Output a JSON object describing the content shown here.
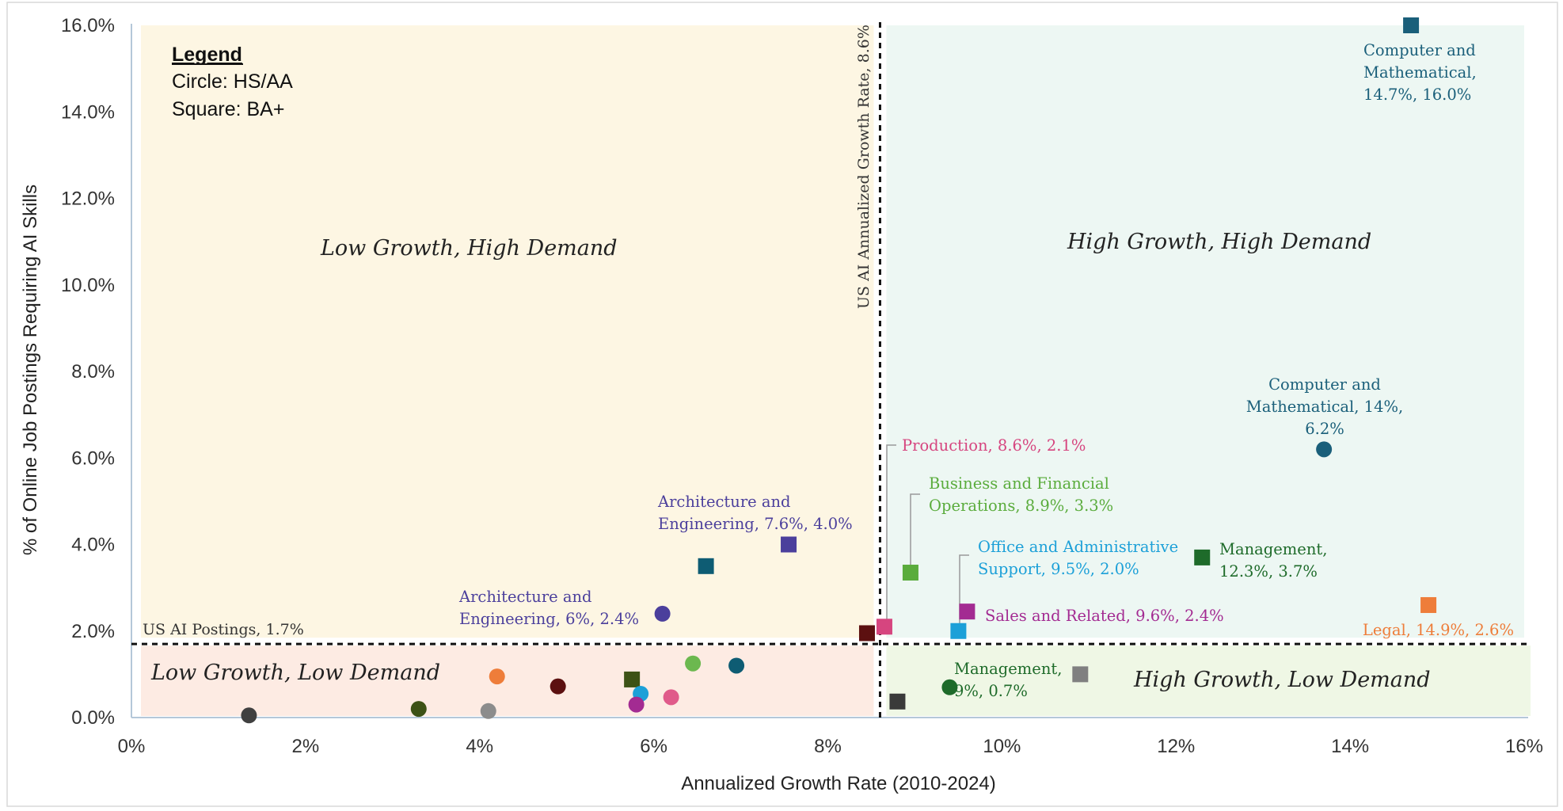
{
  "chart_data": {
    "type": "scatter",
    "title": "",
    "xlabel": "Annualized Growth Rate (2010-2024)",
    "ylabel": "% of Online Job Postings Requiring AI Skills",
    "xlim": [
      0,
      16
    ],
    "ylim": [
      0,
      16
    ],
    "x_ticks": [
      "0%",
      "2%",
      "4%",
      "6%",
      "8%",
      "10%",
      "12%",
      "14%",
      "16%"
    ],
    "y_ticks": [
      "0.0%",
      "2.0%",
      "4.0%",
      "6.0%",
      "8.0%",
      "10.0%",
      "12.0%",
      "14.0%",
      "16.0%"
    ],
    "grid": false,
    "legend": {
      "title": "Legend",
      "items": [
        "Circle: HS/AA",
        "Square: BA+"
      ]
    },
    "reference_lines": {
      "vertical": {
        "x": 8.6,
        "label": "US AI Annualized Growth Rate, 8.6%"
      },
      "horizontal": {
        "y": 1.7,
        "label": "US AI Postings, 1.7%"
      }
    },
    "quadrants": {
      "top_left": {
        "label": "Low Growth, High Demand",
        "color": "#fdf6e3"
      },
      "top_right": {
        "label": "High Growth, High Demand",
        "color": "#edf7f3"
      },
      "bottom_left": {
        "label": "Low Growth, Low Demand",
        "color": "#fdebe3"
      },
      "bottom_right": {
        "label": "High Growth, Low Demand",
        "color": "#eff7e5"
      }
    },
    "points": [
      {
        "x": 14.7,
        "y": 16.0,
        "shape": "square",
        "color": "#1a5f7a",
        "label": "Computer and\nMathematical,\n14.7%, 16.0%",
        "anchor": "start"
      },
      {
        "x": 13.7,
        "y": 6.2,
        "shape": "circle",
        "color": "#1a5f7a",
        "label": "Computer and\nMathematical, 14%,\n6.2%",
        "anchor": "middle"
      },
      {
        "x": 7.55,
        "y": 4.0,
        "shape": "square",
        "color": "#4b3f9c",
        "label": "Architecture and\nEngineering, 7.6%, 4.0%",
        "anchor": "start"
      },
      {
        "x": 6.6,
        "y": 3.5,
        "shape": "square",
        "color": "#0e5c73",
        "label": "",
        "anchor": "start"
      },
      {
        "x": 6.1,
        "y": 2.4,
        "shape": "circle",
        "color": "#4b3f9c",
        "label": "Architecture and\nEngineering, 6%, 2.4%",
        "anchor": "start"
      },
      {
        "x": 8.45,
        "y": 1.95,
        "shape": "square",
        "color": "#5c1010",
        "label": "",
        "anchor": "start"
      },
      {
        "x": 8.65,
        "y": 2.1,
        "shape": "square",
        "color": "#d6457f",
        "label": "Production, 8.6%, 2.1%",
        "anchor": "start"
      },
      {
        "x": 8.95,
        "y": 3.35,
        "shape": "square",
        "color": "#5aac3c",
        "label": "Business and Financial\nOperations, 8.9%, 3.3%",
        "anchor": "start"
      },
      {
        "x": 9.5,
        "y": 2.0,
        "shape": "square",
        "color": "#1ca0d8",
        "label": "Office and Administrative\nSupport, 9.5%, 2.0%",
        "anchor": "start"
      },
      {
        "x": 9.6,
        "y": 2.45,
        "shape": "square",
        "color": "#a32b92",
        "label": "Sales and Related, 9.6%, 2.4%",
        "anchor": "start"
      },
      {
        "x": 12.3,
        "y": 3.7,
        "shape": "square",
        "color": "#1e6b2a",
        "label": "Management,\n12.3%, 3.7%",
        "anchor": "start"
      },
      {
        "x": 14.9,
        "y": 2.6,
        "shape": "square",
        "color": "#ee7d3a",
        "label": "Legal, 14.9%, 2.6%",
        "anchor": "end"
      },
      {
        "x": 9.4,
        "y": 0.7,
        "shape": "circle",
        "color": "#1e6b2a",
        "label": "Management,\n9%, 0.7%",
        "anchor": "start"
      },
      {
        "x": 10.9,
        "y": 1.0,
        "shape": "square",
        "color": "#808080",
        "label": "",
        "anchor": "start"
      },
      {
        "x": 8.8,
        "y": 0.37,
        "shape": "square",
        "color": "#3a3a3a",
        "label": "",
        "anchor": "start"
      },
      {
        "x": 1.35,
        "y": 0.05,
        "shape": "circle",
        "color": "#404040",
        "label": "",
        "anchor": "start"
      },
      {
        "x": 3.3,
        "y": 0.2,
        "shape": "circle",
        "color": "#3d5216",
        "label": "",
        "anchor": "start"
      },
      {
        "x": 4.1,
        "y": 0.15,
        "shape": "circle",
        "color": "#8c8c8c",
        "label": "",
        "anchor": "start"
      },
      {
        "x": 4.2,
        "y": 0.95,
        "shape": "circle",
        "color": "#ee7d3a",
        "label": "",
        "anchor": "start"
      },
      {
        "x": 4.9,
        "y": 0.72,
        "shape": "circle",
        "color": "#5c1010",
        "label": "",
        "anchor": "start"
      },
      {
        "x": 5.75,
        "y": 0.88,
        "shape": "square",
        "color": "#3d5216",
        "label": "",
        "anchor": "start"
      },
      {
        "x": 5.85,
        "y": 0.55,
        "shape": "circle",
        "color": "#1ca0d8",
        "label": "",
        "anchor": "start"
      },
      {
        "x": 5.8,
        "y": 0.3,
        "shape": "circle",
        "color": "#a32b92",
        "label": "",
        "anchor": "start"
      },
      {
        "x": 6.2,
        "y": 0.47,
        "shape": "circle",
        "color": "#e05a8a",
        "label": "",
        "anchor": "start"
      },
      {
        "x": 6.45,
        "y": 1.25,
        "shape": "circle",
        "color": "#6cb84f",
        "label": "",
        "anchor": "start"
      },
      {
        "x": 6.95,
        "y": 1.2,
        "shape": "circle",
        "color": "#0e5c73",
        "label": "",
        "anchor": "start"
      }
    ]
  }
}
